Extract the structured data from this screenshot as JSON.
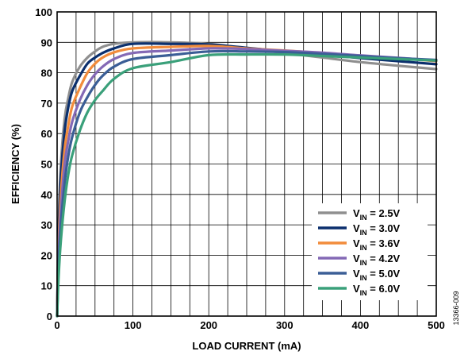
{
  "chart_data": {
    "type": "line",
    "title": "",
    "xlabel": "LOAD CURRENT (mA)",
    "ylabel": "EFFICIENCY (%)",
    "xlim": [
      0,
      500
    ],
    "ylim": [
      0,
      100
    ],
    "xticks": [
      0,
      100,
      200,
      300,
      400,
      500
    ],
    "yticks": [
      0,
      10,
      20,
      30,
      40,
      50,
      60,
      70,
      80,
      90,
      100
    ],
    "grid": true,
    "minor_x_step": 25,
    "legend_position": "bottom-right",
    "figure_id": "13366-009",
    "series": [
      {
        "name": "V_IN = 2.5V",
        "label_main": "V",
        "label_sub": "IN",
        "label_rest": " = 2.5V",
        "color": "#8f8f8f",
        "points": [
          [
            0,
            0
          ],
          [
            2,
            30
          ],
          [
            5,
            50
          ],
          [
            10,
            65
          ],
          [
            15,
            72
          ],
          [
            20,
            77
          ],
          [
            30,
            82
          ],
          [
            40,
            85
          ],
          [
            50,
            87
          ],
          [
            60,
            88.5
          ],
          [
            75,
            89.5
          ],
          [
            100,
            90
          ],
          [
            150,
            90
          ],
          [
            200,
            89.5
          ],
          [
            250,
            88
          ],
          [
            300,
            86.5
          ],
          [
            350,
            85
          ],
          [
            400,
            83.5
          ],
          [
            450,
            82.3
          ],
          [
            500,
            81.2
          ]
        ]
      },
      {
        "name": "V_IN = 3.0V",
        "label_main": "V",
        "label_sub": "IN",
        "label_rest": " = 3.0V",
        "color": "#0b2f6d",
        "points": [
          [
            0,
            0
          ],
          [
            2,
            27
          ],
          [
            5,
            46
          ],
          [
            10,
            61
          ],
          [
            15,
            69
          ],
          [
            20,
            74
          ],
          [
            30,
            79
          ],
          [
            40,
            83
          ],
          [
            50,
            85
          ],
          [
            60,
            86.5
          ],
          [
            75,
            88
          ],
          [
            100,
            89.5
          ],
          [
            150,
            89.5
          ],
          [
            200,
            89.3
          ],
          [
            250,
            88.2
          ],
          [
            300,
            87
          ],
          [
            350,
            86
          ],
          [
            400,
            84.8
          ],
          [
            450,
            83.8
          ],
          [
            500,
            82.8
          ]
        ]
      },
      {
        "name": "V_IN = 3.6V",
        "label_main": "V",
        "label_sub": "IN",
        "label_rest": " = 3.6V",
        "color": "#f28c3c",
        "points": [
          [
            0,
            0
          ],
          [
            2,
            23
          ],
          [
            5,
            40
          ],
          [
            10,
            55
          ],
          [
            15,
            63
          ],
          [
            20,
            69
          ],
          [
            30,
            75
          ],
          [
            40,
            80
          ],
          [
            50,
            83
          ],
          [
            60,
            85
          ],
          [
            75,
            86.7
          ],
          [
            100,
            88
          ],
          [
            150,
            88.5
          ],
          [
            200,
            88.8
          ],
          [
            250,
            88
          ],
          [
            300,
            87.3
          ],
          [
            350,
            86.5
          ],
          [
            400,
            85.6
          ],
          [
            450,
            84.8
          ],
          [
            500,
            83.8
          ]
        ]
      },
      {
        "name": "V_IN = 4.2V",
        "label_main": "V",
        "label_sub": "IN",
        "label_rest": " = 4.2V",
        "color": "#8469b5",
        "points": [
          [
            0,
            0
          ],
          [
            2,
            20
          ],
          [
            5,
            35
          ],
          [
            10,
            50
          ],
          [
            15,
            58
          ],
          [
            20,
            64
          ],
          [
            30,
            71
          ],
          [
            40,
            76
          ],
          [
            50,
            79.5
          ],
          [
            60,
            82
          ],
          [
            75,
            84.5
          ],
          [
            100,
            86.5
          ],
          [
            150,
            87.3
          ],
          [
            200,
            88
          ],
          [
            250,
            87.8
          ],
          [
            300,
            87.2
          ],
          [
            350,
            86.6
          ],
          [
            400,
            85.7
          ],
          [
            450,
            84.9
          ],
          [
            500,
            84
          ]
        ]
      },
      {
        "name": "V_IN = 5.0V",
        "label_main": "V",
        "label_sub": "IN",
        "label_rest": " = 5.0V",
        "color": "#3b5e96",
        "points": [
          [
            0,
            0
          ],
          [
            2,
            17
          ],
          [
            5,
            30
          ],
          [
            10,
            44
          ],
          [
            15,
            53
          ],
          [
            20,
            59
          ],
          [
            30,
            67
          ],
          [
            40,
            72
          ],
          [
            50,
            76
          ],
          [
            60,
            79
          ],
          [
            75,
            82
          ],
          [
            100,
            84.5
          ],
          [
            150,
            85.8
          ],
          [
            200,
            87
          ],
          [
            250,
            87
          ],
          [
            300,
            86.8
          ],
          [
            350,
            86.2
          ],
          [
            400,
            85.5
          ],
          [
            450,
            84.8
          ],
          [
            500,
            84.2
          ]
        ]
      },
      {
        "name": "V_IN = 6.0V",
        "label_main": "V",
        "label_sub": "IN",
        "label_rest": " = 6.0V",
        "color": "#3aa07a",
        "points": [
          [
            0,
            0
          ],
          [
            2,
            13
          ],
          [
            5,
            25
          ],
          [
            10,
            38
          ],
          [
            15,
            47
          ],
          [
            20,
            53
          ],
          [
            30,
            61
          ],
          [
            40,
            67
          ],
          [
            50,
            71
          ],
          [
            60,
            74
          ],
          [
            75,
            78
          ],
          [
            100,
            81.5
          ],
          [
            150,
            83.5
          ],
          [
            200,
            85.8
          ],
          [
            250,
            86
          ],
          [
            300,
            86
          ],
          [
            350,
            85.5
          ],
          [
            400,
            85
          ],
          [
            450,
            84.5
          ],
          [
            500,
            84
          ]
        ]
      }
    ]
  }
}
